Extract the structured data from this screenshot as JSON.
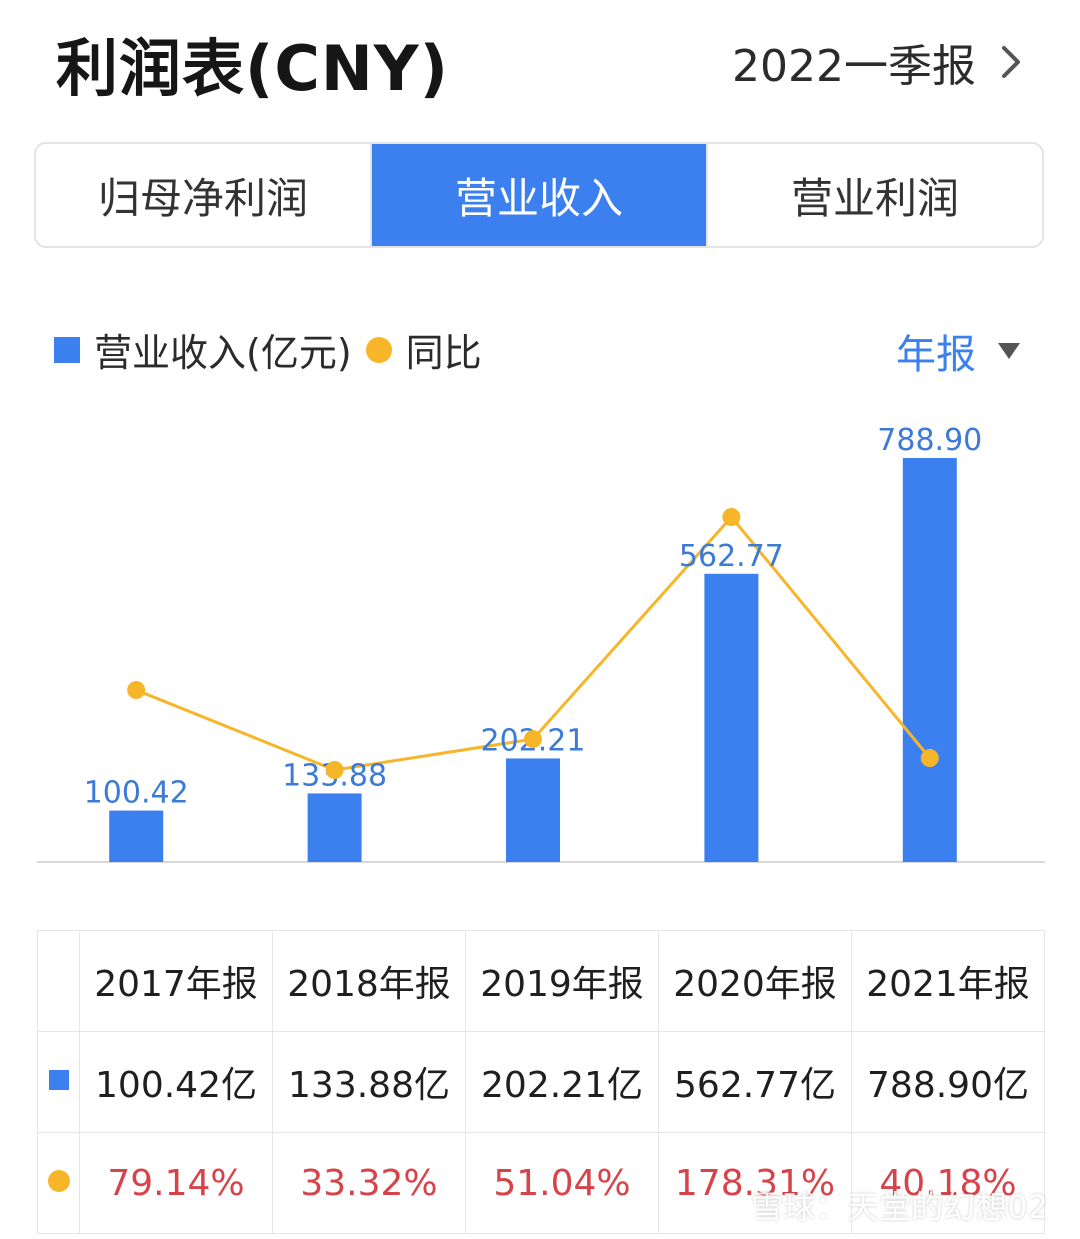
{
  "header": {
    "title": "利润表(CNY)",
    "period": "2022一季报",
    "period_icon": "chevron-right-icon"
  },
  "tabs": [
    {
      "label": "归母净利润",
      "active": false
    },
    {
      "label": "营业收入",
      "active": true
    },
    {
      "label": "营业利润",
      "active": false
    }
  ],
  "legend": {
    "bar_label": "营业收入(亿元)",
    "line_label": "同比"
  },
  "mode": {
    "label": "年报",
    "icon": "triangle-down-icon"
  },
  "colors": {
    "bar": "#3b80ee",
    "line": "#f7b52a",
    "label": "#3b7bd6",
    "negative_text": "#d8434a"
  },
  "chart_data": {
    "type": "bar",
    "categories": [
      "2017年报",
      "2018年报",
      "2019年报",
      "2020年报",
      "2021年报"
    ],
    "series": [
      {
        "name": "营业收入(亿元)",
        "type": "bar",
        "values": [
          100.42,
          133.88,
          202.21,
          562.77,
          788.9
        ],
        "labels": [
          "100.42",
          "133.88",
          "202.21",
          "562.77",
          "788.90"
        ]
      },
      {
        "name": "同比",
        "type": "line",
        "values": [
          79.14,
          33.32,
          51.04,
          178.31,
          40.18
        ]
      }
    ],
    "legend": "top-left",
    "grid": false
  },
  "table": {
    "headers": [
      "2017年报",
      "2018年报",
      "2019年报",
      "2020年报",
      "2021年报"
    ],
    "revenue": [
      "100.42亿",
      "133.88亿",
      "202.21亿",
      "562.77亿",
      "788.90亿"
    ],
    "yoy": [
      "79.14%",
      "33.32%",
      "51.04%",
      "178.31%",
      "40.18%"
    ]
  },
  "watermark": "雪球：天堂的幻想02"
}
